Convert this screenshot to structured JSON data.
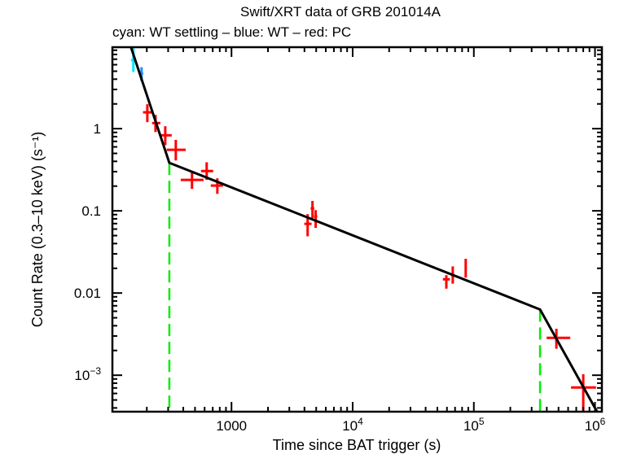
{
  "chart_data": {
    "type": "scatter",
    "title": "Swift/XRT data of GRB 201014A",
    "subtitle": "cyan: WT settling – blue: WT – red: PC",
    "xlabel": "Time since BAT trigger (s)",
    "ylabel": "Count Rate (0.3–10 keV) (s⁻¹)",
    "xscale": "log",
    "yscale": "log",
    "xlim": [
      104,
      1140000
    ],
    "ylim": [
      0.00036,
      9.8
    ],
    "grid": false,
    "x_ticks": [
      {
        "value": 1000,
        "label": "1000",
        "sup": ""
      },
      {
        "value": 10000,
        "label": "10",
        "sup": "4"
      },
      {
        "value": 100000,
        "label": "10",
        "sup": "5"
      },
      {
        "value": 1000000,
        "label": "10",
        "sup": "6"
      }
    ],
    "y_ticks": [
      {
        "value": 1,
        "label": "1",
        "sup": ""
      },
      {
        "value": 0.1,
        "label": "0.1",
        "sup": ""
      },
      {
        "value": 0.01,
        "label": "0.01",
        "sup": ""
      },
      {
        "value": 0.001,
        "label": "10",
        "sup": "−3"
      }
    ],
    "colors": {
      "wt_settling": "#00e5ff",
      "wt": "#1e90ff",
      "pc": "#ff0000",
      "model": "#000000",
      "breaks": "#00ee00"
    },
    "series": [
      {
        "name": "WT settling",
        "color_key": "wt_settling",
        "points": [
          {
            "x": 155,
            "xlo": 148,
            "xhi": 162,
            "y": 6.8,
            "ylo": 4.9,
            "yhi": 9.8
          }
        ]
      },
      {
        "name": "WT",
        "color_key": "wt",
        "points": [
          {
            "x": 181,
            "xlo": 176,
            "xhi": 187,
            "y": 4.7,
            "ylo": 3.8,
            "yhi": 5.6
          }
        ]
      },
      {
        "name": "PC",
        "color_key": "pc",
        "points": [
          {
            "x": 202,
            "xlo": 186,
            "xhi": 222,
            "y": 1.58,
            "ylo": 1.2,
            "yhi": 1.98
          },
          {
            "x": 236,
            "xlo": 221,
            "xhi": 259,
            "y": 1.17,
            "ylo": 0.91,
            "yhi": 1.47
          },
          {
            "x": 284,
            "xlo": 255,
            "xhi": 321,
            "y": 0.83,
            "ylo": 0.63,
            "yhi": 1.07
          },
          {
            "x": 347,
            "xlo": 292,
            "xhi": 419,
            "y": 0.553,
            "ylo": 0.41,
            "yhi": 0.73
          },
          {
            "x": 472,
            "xlo": 381,
            "xhi": 588,
            "y": 0.238,
            "ylo": 0.185,
            "yhi": 0.29
          },
          {
            "x": 624,
            "xlo": 560,
            "xhi": 706,
            "y": 0.305,
            "ylo": 0.238,
            "yhi": 0.39
          },
          {
            "x": 764,
            "xlo": 674,
            "xhi": 850,
            "y": 0.203,
            "ylo": 0.161,
            "yhi": 0.249
          },
          {
            "x": 4250,
            "xlo": 3990,
            "xhi": 4580,
            "y": 0.0695,
            "ylo": 0.049,
            "yhi": 0.0913
          },
          {
            "x": 4660,
            "xlo": 4500,
            "xhi": 4820,
            "y": 0.107,
            "ylo": 0.0815,
            "yhi": 0.132
          },
          {
            "x": 4950,
            "xlo": 4800,
            "xhi": 5100,
            "y": 0.0853,
            "ylo": 0.062,
            "yhi": 0.102
          },
          {
            "x": 59300,
            "xlo": 55500,
            "xhi": 63500,
            "y": 0.0147,
            "ylo": 0.0113,
            "yhi": 0.0165
          },
          {
            "x": 67000,
            "xlo": 65000,
            "xhi": 69000,
            "y": 0.0165,
            "ylo": 0.013,
            "yhi": 0.0211
          },
          {
            "x": 85700,
            "xlo": 84000,
            "xhi": 87500,
            "y": 0.0203,
            "ylo": 0.0154,
            "yhi": 0.0261
          },
          {
            "x": 480000,
            "xlo": 399000,
            "xhi": 625000,
            "y": 0.00285,
            "ylo": 0.0021,
            "yhi": 0.00367
          },
          {
            "x": 800000,
            "xlo": 634000,
            "xhi": 1020000,
            "y": 0.00071,
            "ylo": 0.00036,
            "yhi": 0.00103
          }
        ]
      }
    ],
    "model": {
      "name": "broken power-law fit",
      "points": [
        {
          "x": 148,
          "y": 9.8
        },
        {
          "x": 307,
          "y": 0.384
        },
        {
          "x": 352000,
          "y": 0.0063
        },
        {
          "x": 1040000,
          "y": 0.00036
        }
      ]
    },
    "breaks": [
      307,
      352000
    ]
  }
}
